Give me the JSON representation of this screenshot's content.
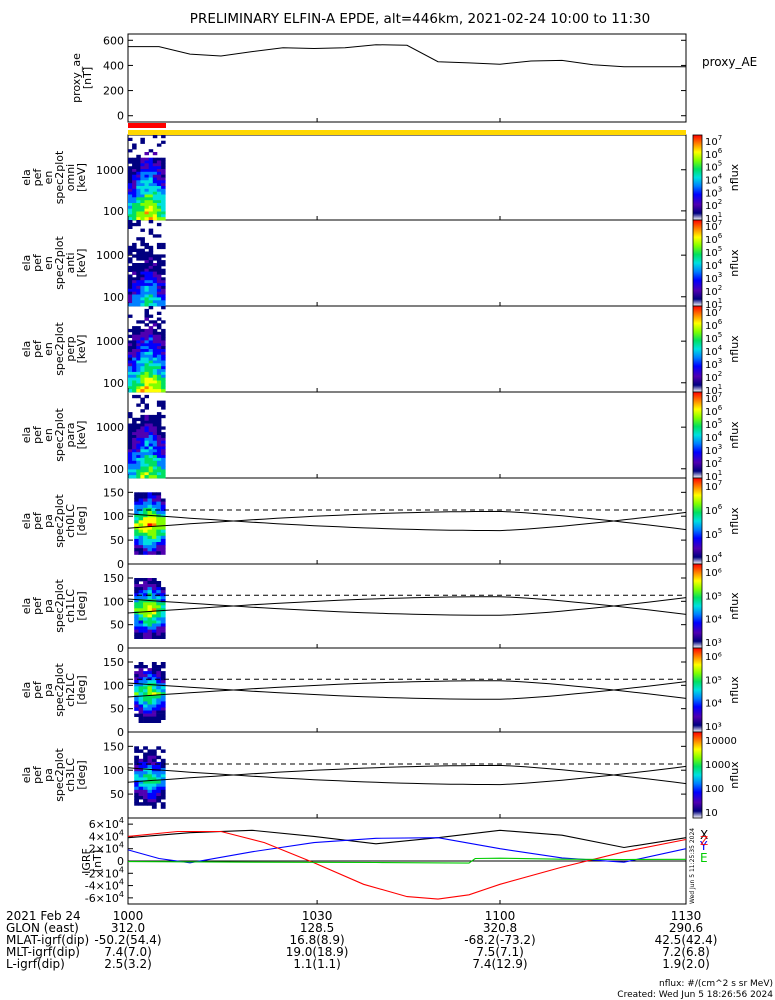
{
  "title": "PRELIMINARY ELFIN-A EPDE, alt=446km, 2021-02-24 10:00 to 11:30",
  "time_axis": {
    "start": "10:00",
    "end": "11:30",
    "tick_minutes": [
      0,
      30.5,
      60,
      90
    ],
    "tick_labels": [
      "1000",
      "1030",
      "1100",
      "1130"
    ]
  },
  "bars": {
    "top_bar_color": "#ff0000",
    "bottom_bar_color": "#ffd700"
  },
  "colors": {
    "lc_dashed": "#000000",
    "igrf_x": "#000000",
    "igrf_y": "#0000ff",
    "igrf_z": "#ff0000",
    "igrf_total": "#00cc00"
  },
  "colorbar": {
    "gradient": [
      "#ff0000",
      "#ff8000",
      "#ffff00",
      "#80ff00",
      "#00e060",
      "#00e0e0",
      "#0080ff",
      "#0000ff",
      "#5000b0",
      "#000080",
      "#ffffff"
    ],
    "exp_labels": [
      "10",
      "10",
      "10",
      "10",
      "10",
      "10",
      "10"
    ],
    "exp_sup": [
      "7",
      "6",
      "5",
      "4",
      "3",
      "2",
      "1"
    ],
    "label": "nflux",
    "ch1_ticks": [
      "10⁶",
      "10⁵",
      "10⁴",
      "10³"
    ],
    "ch3_ticks": [
      "10000",
      "1000",
      "100",
      "10"
    ]
  },
  "panels": [
    {
      "id": "proxy_ae",
      "ylabel": [
        "proxy_ae",
        "[nT]"
      ],
      "legend": "proxy_AE",
      "yticks": [
        "600",
        "400",
        "200",
        "0"
      ]
    },
    {
      "id": "en_spec_omni",
      "ylabel": [
        "ela",
        "pef",
        "en",
        "spec2plot",
        "omni",
        "[keV]"
      ],
      "yticks": [
        "1000",
        "100"
      ]
    },
    {
      "id": "en_spec_anti",
      "ylabel": [
        "ela",
        "pef",
        "en",
        "spec2plot",
        "anti",
        "[keV]"
      ],
      "yticks": [
        "1000",
        "100"
      ]
    },
    {
      "id": "en_spec_perp",
      "ylabel": [
        "ela",
        "pef",
        "en",
        "spec2plot",
        "perp",
        "[keV]"
      ],
      "yticks": [
        "1000",
        "100"
      ]
    },
    {
      "id": "en_spec_para",
      "ylabel": [
        "ela",
        "pef",
        "en",
        "spec2plot",
        "para",
        "[keV]"
      ],
      "yticks": [
        "1000",
        "100"
      ]
    },
    {
      "id": "pa_ch0",
      "ylabel": [
        "ela",
        "pef",
        "pa",
        "spec2plot",
        "ch0LC",
        "[deg]"
      ],
      "yticks": [
        "150",
        "100",
        "50",
        "0"
      ]
    },
    {
      "id": "pa_ch1",
      "ylabel": [
        "ela",
        "pef",
        "pa",
        "spec2plot",
        "ch1LC",
        "[deg]"
      ],
      "yticks": [
        "150",
        "100",
        "50",
        "0"
      ]
    },
    {
      "id": "pa_ch2",
      "ylabel": [
        "ela",
        "pef",
        "pa",
        "spec2plot",
        "ch2LC",
        "[deg]"
      ],
      "yticks": [
        "150",
        "100",
        "50",
        "0"
      ]
    },
    {
      "id": "pa_ch3",
      "ylabel": [
        "ela",
        "pef",
        "pa",
        "spec2plot",
        "ch3LC",
        "[deg]"
      ],
      "yticks": [
        "150",
        "100",
        "50"
      ]
    },
    {
      "id": "igrf",
      "ylabel": [
        "IGRF",
        "[nT]"
      ],
      "yticks": [
        {
          "m": "6",
          "e": "4",
          "s": ""
        },
        {
          "m": "4",
          "e": "4",
          "s": ""
        },
        {
          "m": "2",
          "e": "4",
          "s": ""
        },
        {
          "m": "",
          "e": "",
          "s": "0"
        },
        {
          "m": "-2",
          "e": "4",
          "s": ""
        },
        {
          "m": "-4",
          "e": "4",
          "s": ""
        },
        {
          "m": "-6",
          "e": "4",
          "s": ""
        }
      ],
      "legend": [
        "X",
        "Y",
        "Z",
        "E"
      ],
      "side_text": "Wed Jun 5 11:25:35 2024"
    }
  ],
  "ephemeris": {
    "rows": [
      {
        "label": "2021 Feb 24",
        "values": [
          "1000",
          "1030",
          "1100",
          "1130"
        ]
      },
      {
        "label": "GLON (east)",
        "values": [
          "312.0",
          "128.5",
          "320.8",
          "290.6"
        ]
      },
      {
        "label": "MLAT-igrf(dip)",
        "values": [
          "-50.2(54.4)",
          "16.8(8.9)",
          "-68.2(-73.2)",
          "42.5(42.4)"
        ]
      },
      {
        "label": "MLT-igrf(dip)",
        "values": [
          "7.4(7.0)",
          "19.0(18.9)",
          "7.5(7.1)",
          "7.2(6.8)"
        ]
      },
      {
        "label": "L-igrf(dip)",
        "values": [
          "2.5(3.2)",
          "1.1(1.1)",
          "7.4(12.9)",
          "1.9(2.0)"
        ]
      }
    ]
  },
  "footer": {
    "units": "nflux: #/(cm^2 s sr MeV)",
    "created": "Created: Wed Jun  5 18:26:56 2024"
  },
  "chart_data": [
    {
      "type": "line",
      "title": "proxy_ae",
      "series": [
        {
          "name": "proxy_AE",
          "x": [
            0,
            5,
            10,
            15,
            20,
            25,
            30,
            35,
            40,
            45,
            50,
            55,
            60,
            65,
            70,
            75,
            80,
            85,
            90
          ],
          "y": [
            550,
            550,
            490,
            475,
            510,
            540,
            535,
            540,
            565,
            560,
            430,
            420,
            410,
            435,
            440,
            405,
            390,
            390,
            390
          ]
        }
      ],
      "ylim": [
        -50,
        650
      ]
    },
    {
      "type": "heatmap",
      "title": "en spec omni",
      "x_range": [
        0,
        6
      ],
      "ylim": [
        60,
        7000
      ],
      "log_y": true
    },
    {
      "type": "heatmap",
      "title": "en spec anti",
      "x_range": [
        0,
        6
      ],
      "ylim": [
        60,
        7000
      ],
      "log_y": true
    },
    {
      "type": "heatmap",
      "title": "en spec perp",
      "x_range": [
        0,
        6
      ],
      "ylim": [
        60,
        7000
      ],
      "log_y": true
    },
    {
      "type": "heatmap",
      "title": "en spec para",
      "x_range": [
        0,
        6
      ],
      "ylim": [
        60,
        7000
      ],
      "log_y": true
    },
    {
      "type": "heatmap",
      "title": "ch0LC",
      "x_range": [
        1,
        6
      ],
      "ylim": [
        0,
        180
      ],
      "series": [
        {
          "name": "LC",
          "x": [
            0,
            30,
            60,
            90
          ],
          "y": [
            75,
            98,
            110,
            72
          ]
        },
        {
          "name": "ALC",
          "x": [
            0,
            90
          ],
          "y": [
            113,
            113
          ]
        }
      ]
    },
    {
      "type": "heatmap",
      "title": "ch1LC",
      "x_range": [
        1,
        6
      ],
      "ylim": [
        0,
        180
      ],
      "series": [
        {
          "name": "LC",
          "x": [
            0,
            30,
            60,
            90
          ],
          "y": [
            75,
            98,
            110,
            72
          ]
        },
        {
          "name": "ALC",
          "x": [
            0,
            90
          ],
          "y": [
            113,
            113
          ]
        }
      ]
    },
    {
      "type": "heatmap",
      "title": "ch2LC",
      "x_range": [
        1,
        6
      ],
      "ylim": [
        0,
        180
      ],
      "series": [
        {
          "name": "LC",
          "x": [
            0,
            30,
            60,
            90
          ],
          "y": [
            75,
            98,
            110,
            72
          ]
        },
        {
          "name": "ALC",
          "x": [
            0,
            90
          ],
          "y": [
            113,
            113
          ]
        }
      ]
    },
    {
      "type": "heatmap",
      "title": "ch3LC",
      "x_range": [
        1,
        6
      ],
      "ylim": [
        0,
        180
      ],
      "series": [
        {
          "name": "LC",
          "x": [
            0,
            30,
            60,
            90
          ],
          "y": [
            75,
            98,
            110,
            72
          ]
        },
        {
          "name": "ALC",
          "x": [
            0,
            90
          ],
          "y": [
            113,
            113
          ]
        }
      ]
    },
    {
      "type": "line",
      "title": "IGRF",
      "ylim": [
        -70000,
        70000
      ],
      "series": [
        {
          "name": "X",
          "x": [
            0,
            10,
            20,
            30,
            40,
            50,
            60,
            70,
            80,
            90
          ],
          "y": [
            38000,
            46000,
            50000,
            40000,
            28000,
            38000,
            50000,
            42000,
            22000,
            38000
          ]
        },
        {
          "name": "Y",
          "x": [
            0,
            5,
            10,
            20,
            30,
            40,
            50,
            60,
            70,
            80,
            90
          ],
          "y": [
            18000,
            4000,
            -3000,
            15000,
            30000,
            37000,
            38000,
            20000,
            5000,
            -2000,
            20000
          ]
        },
        {
          "name": "Z",
          "x": [
            0,
            8,
            15,
            22,
            30,
            38,
            45,
            50,
            55,
            60,
            70,
            80,
            90
          ],
          "y": [
            40000,
            48000,
            48000,
            30000,
            -3000,
            -38000,
            -58000,
            -62000,
            -55000,
            -38000,
            -10000,
            15000,
            35000
          ]
        },
        {
          "name": "E",
          "x": [
            0,
            20,
            40,
            55,
            56,
            60,
            70,
            80,
            90
          ],
          "y": [
            -1000,
            -2000,
            -2500,
            -3500,
            4000,
            4500,
            3000,
            2500,
            2800
          ]
        }
      ]
    }
  ]
}
